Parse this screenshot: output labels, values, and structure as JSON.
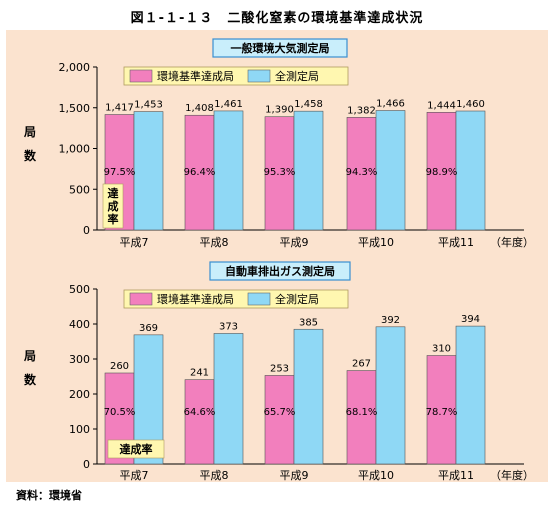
{
  "figure_title": "図１-１-１３　二酸化窒素の環境基準達成状況",
  "source": "資料：環境省",
  "colors": {
    "achieved": "#f27fbd",
    "total": "#8fd8f5",
    "panel": "#fbe3cf",
    "title_box": "#c9eefb",
    "title_border": "#3a8fd0"
  },
  "chart_data": [
    {
      "type": "bar",
      "title": "一般環境大気測定局",
      "ylabel": "局数",
      "ylabel_chars": [
        "局",
        "数"
      ],
      "ylim": [
        0,
        2000
      ],
      "yticks": [
        "0",
        "500",
        "1,000",
        "1,500",
        "2,000"
      ],
      "ytick_values": [
        0,
        500,
        1000,
        1500,
        2000
      ],
      "categories": [
        "平成7",
        "平成8",
        "平成9",
        "平成10",
        "平成11"
      ],
      "unit_note": "（年度）",
      "series": [
        {
          "name": "環境基準達成局",
          "values": [
            1417,
            1408,
            1390,
            1382,
            1444
          ],
          "labels": [
            "1,417",
            "1,408",
            "1,390",
            "1,382",
            "1,444"
          ]
        },
        {
          "name": "全測定局",
          "values": [
            1453,
            1461,
            1458,
            1466,
            1460
          ],
          "labels": [
            "1,453",
            "1,461",
            "1,458",
            "1,466",
            "1,460"
          ]
        }
      ],
      "rates": [
        "97.5%",
        "96.4%",
        "95.3%",
        "94.3%",
        "98.9%"
      ],
      "rate_label": "達成率",
      "rate_label_vertical": true,
      "grid": false,
      "legend": "top-left"
    },
    {
      "type": "bar",
      "title": "自動車排出ガス測定局",
      "ylabel": "局数",
      "ylabel_chars": [
        "局",
        "数"
      ],
      "ylim": [
        0,
        500
      ],
      "yticks": [
        "0",
        "100",
        "200",
        "300",
        "400",
        "500"
      ],
      "ytick_values": [
        0,
        100,
        200,
        300,
        400,
        500
      ],
      "categories": [
        "平成7",
        "平成8",
        "平成9",
        "平成10",
        "平成11"
      ],
      "unit_note": "（年度）",
      "series": [
        {
          "name": "環境基準達成局",
          "values": [
            260,
            241,
            253,
            267,
            310
          ],
          "labels": [
            "260",
            "241",
            "253",
            "267",
            "310"
          ]
        },
        {
          "name": "全測定局",
          "values": [
            369,
            373,
            385,
            392,
            394
          ],
          "labels": [
            "369",
            "373",
            "385",
            "392",
            "394"
          ]
        }
      ],
      "rates": [
        "70.5%",
        "64.6%",
        "65.7%",
        "68.1%",
        "78.7%"
      ],
      "rate_label": "達成率",
      "rate_label_vertical": false,
      "grid": false,
      "legend": "top-left"
    }
  ]
}
